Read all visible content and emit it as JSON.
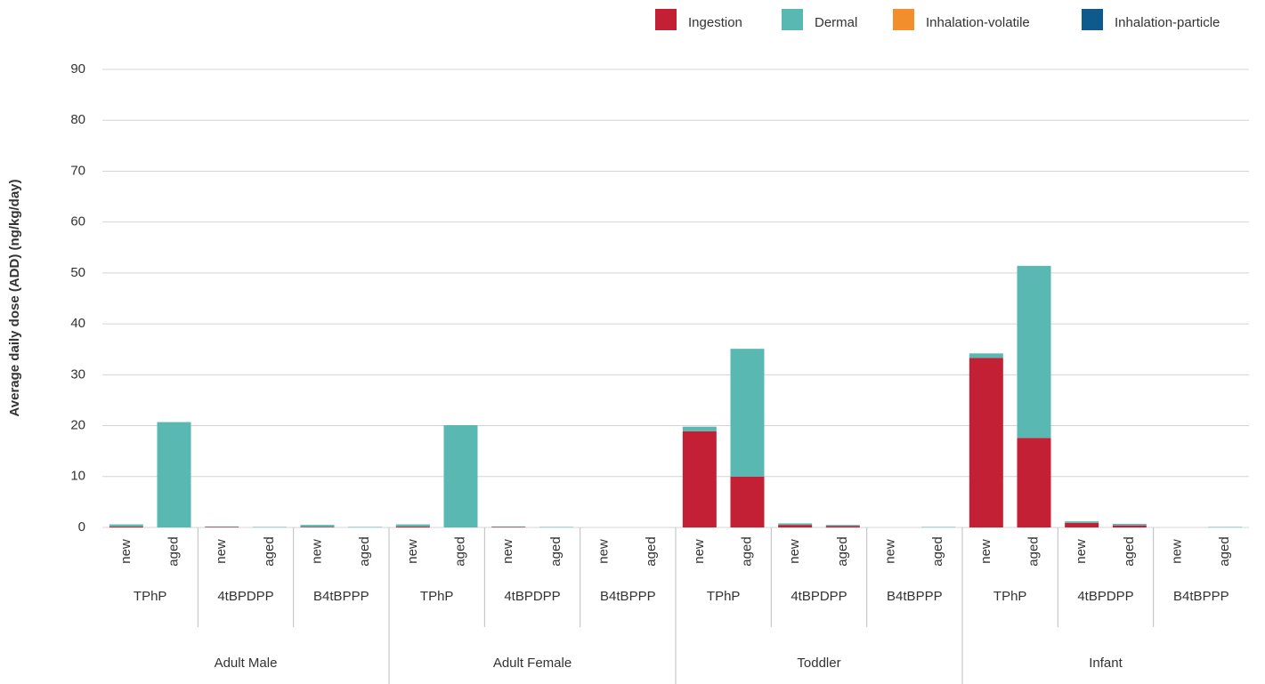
{
  "chart_data": {
    "type": "stacked_bar",
    "y_label": "Average daily dose (ADD) (ng/kg/day)",
    "categories": [
      "new",
      "aged",
      "new",
      "aged",
      "new",
      "aged",
      "new",
      "aged",
      "new",
      "aged",
      "new",
      "aged",
      "new",
      "aged",
      "new",
      "aged",
      "new",
      "aged",
      "new",
      "aged",
      "new",
      "aged",
      "new",
      "aged"
    ],
    "subgroups": [
      "TPhP",
      "4tBPDPP",
      "B4tBPPP",
      "TPhP",
      "4tBPDPP",
      "B4tBPPP",
      "TPhP",
      "4tBPDPP",
      "B4tBPPP",
      "TPhP",
      "4tBPDPP",
      "B4tBPPP"
    ],
    "groups": [
      "Adult Male",
      "Adult Female",
      "Toddler",
      "Infant"
    ],
    "series": [
      {
        "name": "Ingestion",
        "color": "#c32036",
        "values": [
          0.2,
          0,
          0.1,
          0,
          0.1,
          0,
          0.2,
          0,
          0.1,
          0,
          0,
          0,
          18.9,
          10,
          0.5,
          0.3,
          0,
          0,
          33.3,
          17.6,
          0.9,
          0.4,
          0,
          0
        ]
      },
      {
        "name": "Dermal",
        "color": "#5ab8b2",
        "values": [
          0.4,
          20.7,
          0.1,
          0.1,
          0.4,
          0.1,
          0.4,
          20.1,
          0.1,
          0.1,
          0,
          0,
          0.9,
          25.1,
          0.3,
          0.2,
          0,
          0.1,
          0.9,
          33.8,
          0.3,
          0.3,
          0,
          0.1
        ]
      },
      {
        "name": "Inhalation-volatile",
        "color": "#f28e2b",
        "values": [
          0,
          0,
          0,
          0,
          0,
          0,
          0,
          0,
          0,
          0,
          0,
          0,
          0,
          0,
          0,
          0,
          0,
          0,
          0,
          0,
          0,
          0,
          0,
          0
        ]
      },
      {
        "name": "Inhalation-particle",
        "color": "#0f5a8c",
        "values": [
          0,
          0,
          0,
          0,
          0,
          0,
          0,
          0,
          0,
          0,
          0,
          0,
          0,
          0,
          0,
          0,
          0,
          0,
          0,
          0,
          0,
          0,
          0,
          0
        ]
      }
    ],
    "ylim": [
      0,
      90
    ],
    "yticks": [
      0,
      10,
      20,
      30,
      40,
      50,
      60,
      70,
      80,
      90
    ],
    "grid": true,
    "legend": "top-right"
  }
}
